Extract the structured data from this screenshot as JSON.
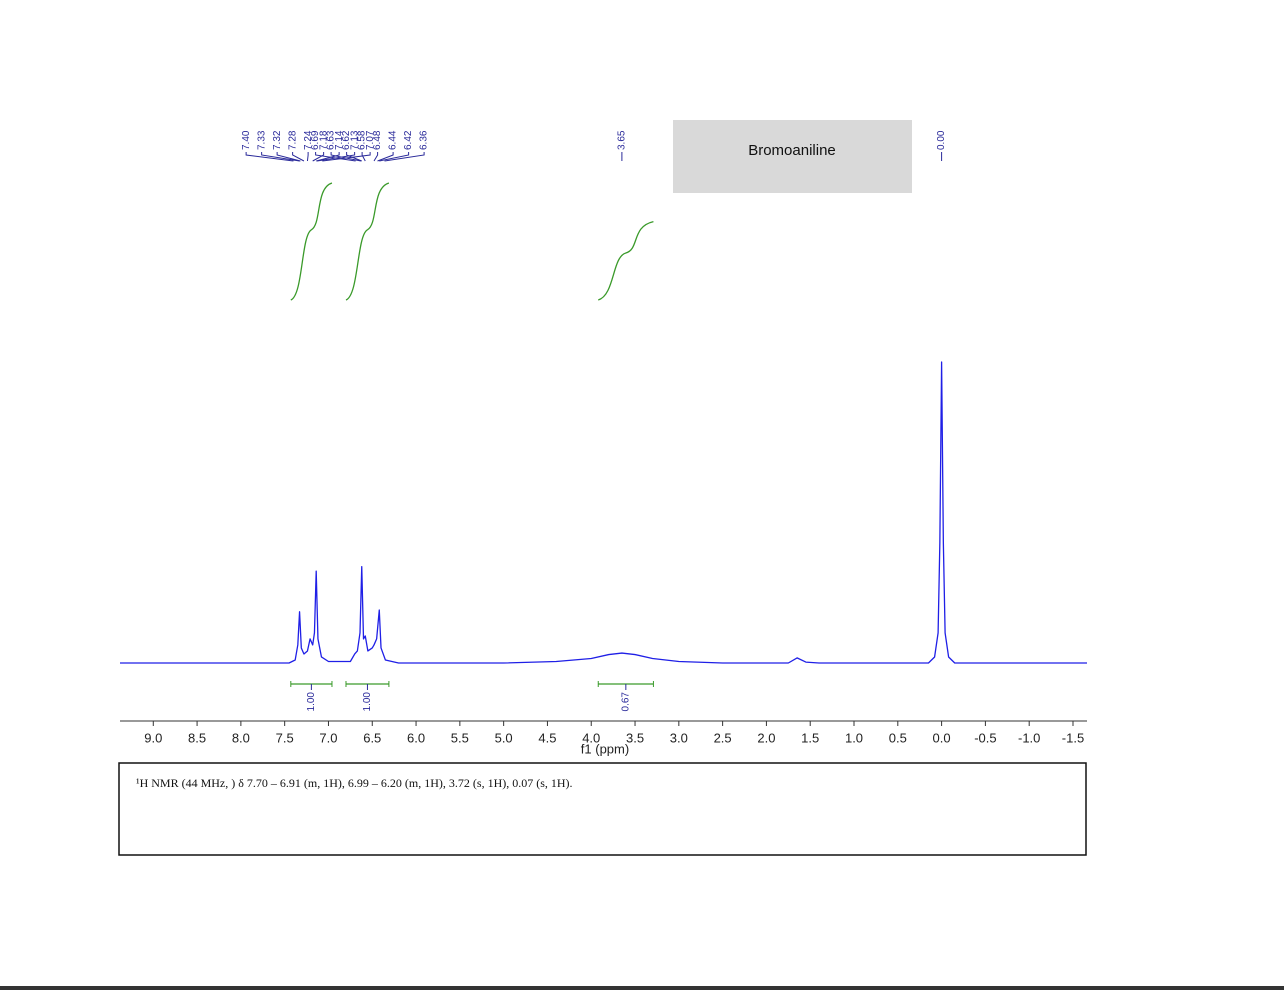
{
  "chart_data": {
    "type": "line",
    "title": "Bromoaniline",
    "x_label": "f1 (ppm)",
    "caption": "¹H NMR (44 MHz, ) δ 7.70 – 6.91 (m, 1H), 6.99 – 6.20 (m, 1H), 3.72 (s, 1H), 0.07 (s, 1H).",
    "color": "#1f1fe6",
    "integral_color": "#3a9a2a",
    "x": [
      9.38,
      7.45,
      7.38,
      7.35,
      7.33,
      7.31,
      7.28,
      7.24,
      7.21,
      7.18,
      7.16,
      7.14,
      7.12,
      7.08,
      7.0,
      6.75,
      6.7,
      6.67,
      6.64,
      6.62,
      6.6,
      6.58,
      6.55,
      6.5,
      6.48,
      6.45,
      6.42,
      6.4,
      6.35,
      6.2,
      5.0,
      4.4,
      4.0,
      3.8,
      3.65,
      3.5,
      3.3,
      3.0,
      2.5,
      1.75,
      1.65,
      1.55,
      1.4,
      0.15,
      0.08,
      0.04,
      0.02,
      0.0,
      -0.02,
      -0.04,
      -0.08,
      -0.15,
      -1.66
    ],
    "values": [
      0,
      0,
      1,
      6,
      17,
      5,
      3,
      4,
      8,
      6,
      10,
      30.5,
      8,
      2,
      0.5,
      0.5,
      3,
      4,
      10,
      32,
      8,
      9,
      4,
      5,
      6,
      8,
      17.6,
      5,
      1,
      0,
      0,
      0.5,
      1.5,
      2.8,
      3.3,
      2.8,
      1.5,
      0.5,
      0,
      0,
      1.7,
      0.3,
      0,
      0,
      2,
      10,
      40,
      100,
      40,
      10,
      2,
      0,
      0
    ],
    "xlim": [
      9.38,
      -1.66
    ],
    "ylim": [
      0,
      100
    ],
    "xticks": [
      {
        "value": 9,
        "label": "9.0"
      },
      8.5,
      {
        "value": 8,
        "label": "8.0"
      },
      7.5,
      {
        "value": 7,
        "label": "7.0"
      },
      6.5,
      {
        "value": 6,
        "label": "6.0"
      },
      5.5,
      {
        "value": 5,
        "label": "5.0"
      },
      4.5,
      {
        "value": 4,
        "label": "4.0"
      },
      3.5,
      {
        "value": 3,
        "label": "3.0"
      },
      2.5,
      {
        "value": 2,
        "label": "2.0"
      },
      1.5,
      {
        "value": 1,
        "label": "1.0"
      },
      0.5,
      {
        "value": 0,
        "label": "0.0"
      },
      -0.5,
      {
        "value": -1,
        "label": "-1.0"
      },
      -1.5
    ],
    "peak_labels": [
      {
        "value": 7.4,
        "label": "7.40"
      },
      7.33,
      7.32,
      7.28,
      7.24,
      7.18,
      7.14,
      7.13,
      7.07,
      6.69,
      6.63,
      6.62,
      6.58,
      6.48,
      6.44,
      6.42,
      6.36,
      3.65,
      {
        "value": 0,
        "label": "0.00"
      }
    ],
    "integrals": [
      {
        "from": 7.43,
        "to": 6.96,
        "value": 1,
        "label": "1.00"
      },
      {
        "from": 6.8,
        "to": 6.31,
        "value": 1,
        "label": "1.00"
      },
      {
        "from": 3.92,
        "to": 3.29,
        "value": 0.67,
        "label": "0.67"
      }
    ]
  }
}
